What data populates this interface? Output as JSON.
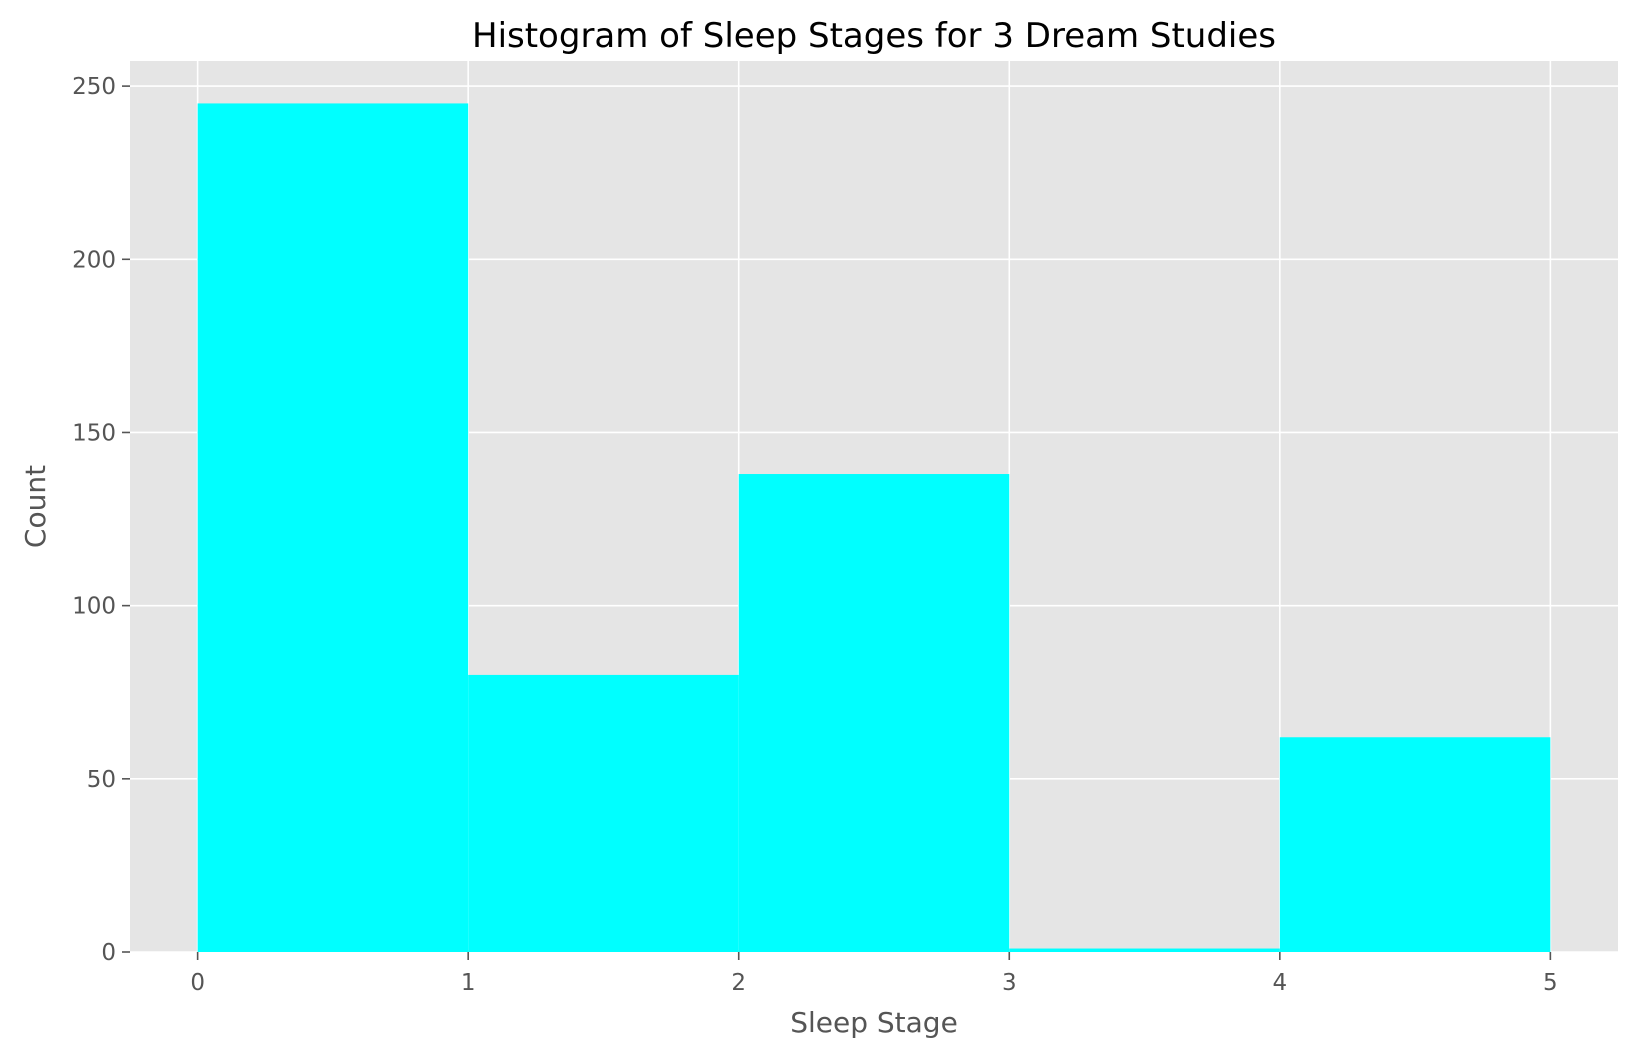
{
  "chart_data": {
    "type": "bar",
    "title": "Histogram of Sleep Stages for 3 Dream Studies",
    "xlabel": "Sleep Stage",
    "ylabel": "Count",
    "bins": [
      {
        "start": 0,
        "end": 1,
        "count": 245
      },
      {
        "start": 1,
        "end": 2,
        "count": 80
      },
      {
        "start": 2,
        "end": 3,
        "count": 138
      },
      {
        "start": 3,
        "end": 4,
        "count": 1
      },
      {
        "start": 4,
        "end": 5,
        "count": 62
      }
    ],
    "xlim": [
      -0.25,
      5.25
    ],
    "ylim": [
      0,
      257.25
    ],
    "xticks": [
      "0",
      "1",
      "2",
      "3",
      "4",
      "5"
    ],
    "yticks": [
      "0",
      "50",
      "100",
      "150",
      "200",
      "250"
    ],
    "grid": true,
    "colors": {
      "bar": "#00ffff",
      "plot_background": "#e5e5e5",
      "grid": "#ffffff",
      "tick": "#555555"
    }
  }
}
